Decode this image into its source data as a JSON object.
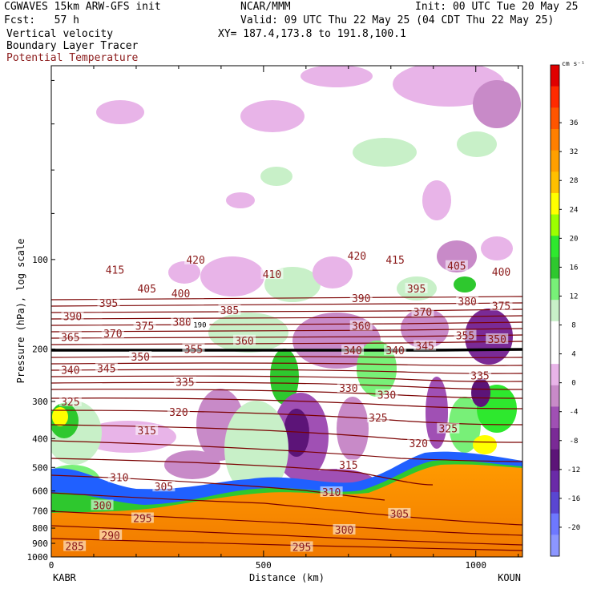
{
  "header": {
    "line1_left": "CGWAVES 15km ARW-GFS init",
    "line1_mid": "NCAR/MMM",
    "line1_right": "Init: 00 UTC Tue 20 May 25",
    "line2_left": "Fcst:   57 h",
    "line2_right": "Valid: 09 UTC Thu 22 May 25 (04 CDT Thu 22 May 25)",
    "line3_left": "Vertical velocity",
    "line3_right": "XY= 187.4,173.8 to 191.8,100.1",
    "line4_left": "Boundary Layer Tracer",
    "line5_left": "Potential Temperature"
  },
  "colors": {
    "theta_contour": "#7a0000",
    "theta_label": "#8b1a1a",
    "bl_tracer": "#000000",
    "terrain": "#f08a00"
  },
  "chart_data": {
    "type": "heatmap",
    "title": "Vertical velocity",
    "xlabel": "Distance (km)",
    "ylabel": "Pressure (hPa), log scale",
    "x_ticks": [
      0,
      500,
      1000
    ],
    "y_ticks": [
      100,
      200,
      300,
      400,
      500,
      600,
      700,
      800,
      900,
      1000
    ],
    "xlim": [
      0,
      1110
    ],
    "endpoint_left": "KABR",
    "endpoint_right": "KOUN",
    "colorbar": {
      "units": "cm s⁻¹",
      "tick_labels": [
        36,
        32,
        28,
        24,
        20,
        16,
        12,
        8,
        4,
        0,
        -4,
        -8,
        -12,
        -16,
        -20
      ],
      "colors": [
        "#e00000",
        "#ff2a00",
        "#ff5500",
        "#ff7f00",
        "#ff9f00",
        "#ffbf00",
        "#ffff00",
        "#9cff00",
        "#2ee82e",
        "#2ec82e",
        "#78f078",
        "#c8f0c8",
        "#ffffff",
        "#ffffff",
        "#e8b4e8",
        "#c88ac8",
        "#a050b4",
        "#7a2a96",
        "#5c1478",
        "#6a2aa8",
        "#5a46d2",
        "#6e78ff",
        "#8c96ff"
      ]
    },
    "theta_labels": [
      {
        "value": "415",
        "x": 150,
        "p": 108
      },
      {
        "value": "420",
        "x": 340,
        "p": 100
      },
      {
        "value": "410",
        "x": 520,
        "p": 112
      },
      {
        "value": "420",
        "x": 720,
        "p": 97
      },
      {
        "value": "415",
        "x": 810,
        "p": 100
      },
      {
        "value": "405",
        "x": 955,
        "p": 105
      },
      {
        "value": "400",
        "x": 1060,
        "p": 110
      },
      {
        "value": "405",
        "x": 225,
        "p": 125
      },
      {
        "value": "400",
        "x": 305,
        "p": 130
      },
      {
        "value": "395",
        "x": 135,
        "p": 140
      },
      {
        "value": "390",
        "x": 50,
        "p": 155
      },
      {
        "value": "385",
        "x": 420,
        "p": 148
      },
      {
        "value": "390",
        "x": 730,
        "p": 135
      },
      {
        "value": "395",
        "x": 860,
        "p": 125
      },
      {
        "value": "380",
        "x": 980,
        "p": 138
      },
      {
        "value": "370",
        "x": 875,
        "p": 150
      },
      {
        "value": "375",
        "x": 1060,
        "p": 143
      },
      {
        "value": "375",
        "x": 220,
        "p": 167
      },
      {
        "value": "380",
        "x": 308,
        "p": 162
      },
      {
        "value": "370",
        "x": 145,
        "p": 177
      },
      {
        "value": "365",
        "x": 45,
        "p": 182
      },
      {
        "value": "360",
        "x": 455,
        "p": 187
      },
      {
        "value": "360",
        "x": 730,
        "p": 167
      },
      {
        "value": "355",
        "x": 335,
        "p": 200
      },
      {
        "value": "340",
        "x": 710,
        "p": 202
      },
      {
        "value": "340",
        "x": 810,
        "p": 202
      },
      {
        "value": "345",
        "x": 880,
        "p": 195
      },
      {
        "value": "355",
        "x": 975,
        "p": 180
      },
      {
        "value": "350",
        "x": 1050,
        "p": 185
      },
      {
        "value": "350",
        "x": 210,
        "p": 212
      },
      {
        "value": "345",
        "x": 130,
        "p": 232
      },
      {
        "value": "340",
        "x": 45,
        "p": 235
      },
      {
        "value": "335",
        "x": 315,
        "p": 258
      },
      {
        "value": "330",
        "x": 700,
        "p": 270
      },
      {
        "value": "330",
        "x": 790,
        "p": 285
      },
      {
        "value": "335",
        "x": 1010,
        "p": 245
      },
      {
        "value": "325",
        "x": 45,
        "p": 300
      },
      {
        "value": "320",
        "x": 300,
        "p": 325
      },
      {
        "value": "325",
        "x": 770,
        "p": 340
      },
      {
        "value": "325",
        "x": 935,
        "p": 370
      },
      {
        "value": "320",
        "x": 865,
        "p": 415
      },
      {
        "value": "315",
        "x": 225,
        "p": 375
      },
      {
        "value": "315",
        "x": 700,
        "p": 490
      },
      {
        "value": "310",
        "x": 160,
        "p": 540
      },
      {
        "value": "310",
        "x": 660,
        "p": 605
      },
      {
        "value": "305",
        "x": 265,
        "p": 580
      },
      {
        "value": "305",
        "x": 820,
        "p": 715
      },
      {
        "value": "300",
        "x": 120,
        "p": 670
      },
      {
        "value": "300",
        "x": 690,
        "p": 810
      },
      {
        "value": "295",
        "x": 215,
        "p": 740
      },
      {
        "value": "295",
        "x": 590,
        "p": 925
      },
      {
        "value": "290",
        "x": 140,
        "p": 845
      },
      {
        "value": "285",
        "x": 55,
        "p": 920
      }
    ],
    "bl_tracer_label": {
      "value": "190",
      "x": 350,
      "p": 165
    }
  }
}
